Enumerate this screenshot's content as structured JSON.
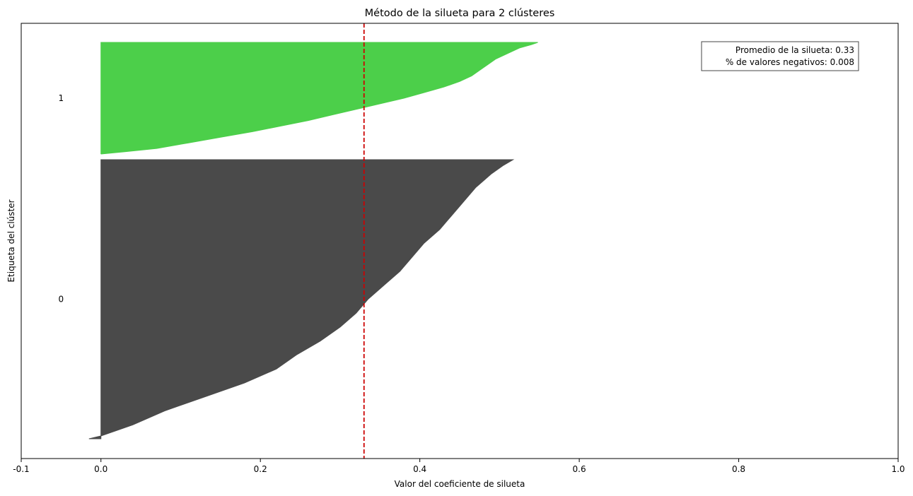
{
  "chart_data": {
    "type": "area",
    "title": "Método de la silueta para 2 clústeres",
    "xlabel": "Valor del coeficiente de silueta",
    "ylabel": "Etiqueta del clúster",
    "xlim": [
      -0.1,
      1.0
    ],
    "xticks": [
      "-0.1",
      "0.0",
      "0.2",
      "0.4",
      "0.6",
      "0.8",
      "1.0"
    ],
    "xtick_values": [
      -0.1,
      0.0,
      0.2,
      0.4,
      0.6,
      0.8,
      1.0
    ],
    "grid": false,
    "legend": "none",
    "average_line": {
      "value": 0.33,
      "color": "#cc0000",
      "style": "dashed"
    },
    "annotation": {
      "lines": [
        "Promedio de la silueta: 0.33",
        "% de valores negativos: 0.008"
      ],
      "placement": "top-right"
    },
    "clusters": [
      {
        "label": "0",
        "color": "#4a4a4a",
        "profile": [
          [
            0.0,
            -0.015
          ],
          [
            0.01,
            0.0
          ],
          [
            0.03,
            0.02
          ],
          [
            0.05,
            0.04
          ],
          [
            0.1,
            0.08
          ],
          [
            0.15,
            0.13
          ],
          [
            0.2,
            0.18
          ],
          [
            0.25,
            0.22
          ],
          [
            0.3,
            0.245
          ],
          [
            0.35,
            0.275
          ],
          [
            0.4,
            0.3
          ],
          [
            0.45,
            0.32
          ],
          [
            0.5,
            0.335
          ],
          [
            0.55,
            0.355
          ],
          [
            0.6,
            0.375
          ],
          [
            0.65,
            0.39
          ],
          [
            0.7,
            0.405
          ],
          [
            0.75,
            0.425
          ],
          [
            0.8,
            0.44
          ],
          [
            0.85,
            0.455
          ],
          [
            0.9,
            0.47
          ],
          [
            0.95,
            0.49
          ],
          [
            0.98,
            0.505
          ],
          [
            1.0,
            0.517
          ]
        ]
      },
      {
        "label": "1",
        "color": "#4ccf4a",
        "profile": [
          [
            0.0,
            0.0
          ],
          [
            0.02,
            0.03
          ],
          [
            0.05,
            0.07
          ],
          [
            0.1,
            0.11
          ],
          [
            0.15,
            0.15
          ],
          [
            0.2,
            0.19
          ],
          [
            0.25,
            0.225
          ],
          [
            0.3,
            0.26
          ],
          [
            0.35,
            0.29
          ],
          [
            0.4,
            0.32
          ],
          [
            0.45,
            0.35
          ],
          [
            0.5,
            0.38
          ],
          [
            0.55,
            0.405
          ],
          [
            0.6,
            0.43
          ],
          [
            0.65,
            0.45
          ],
          [
            0.7,
            0.465
          ],
          [
            0.75,
            0.475
          ],
          [
            0.8,
            0.485
          ],
          [
            0.85,
            0.495
          ],
          [
            0.9,
            0.51
          ],
          [
            0.95,
            0.525
          ],
          [
            0.98,
            0.54
          ],
          [
            1.0,
            0.548
          ]
        ]
      }
    ]
  }
}
